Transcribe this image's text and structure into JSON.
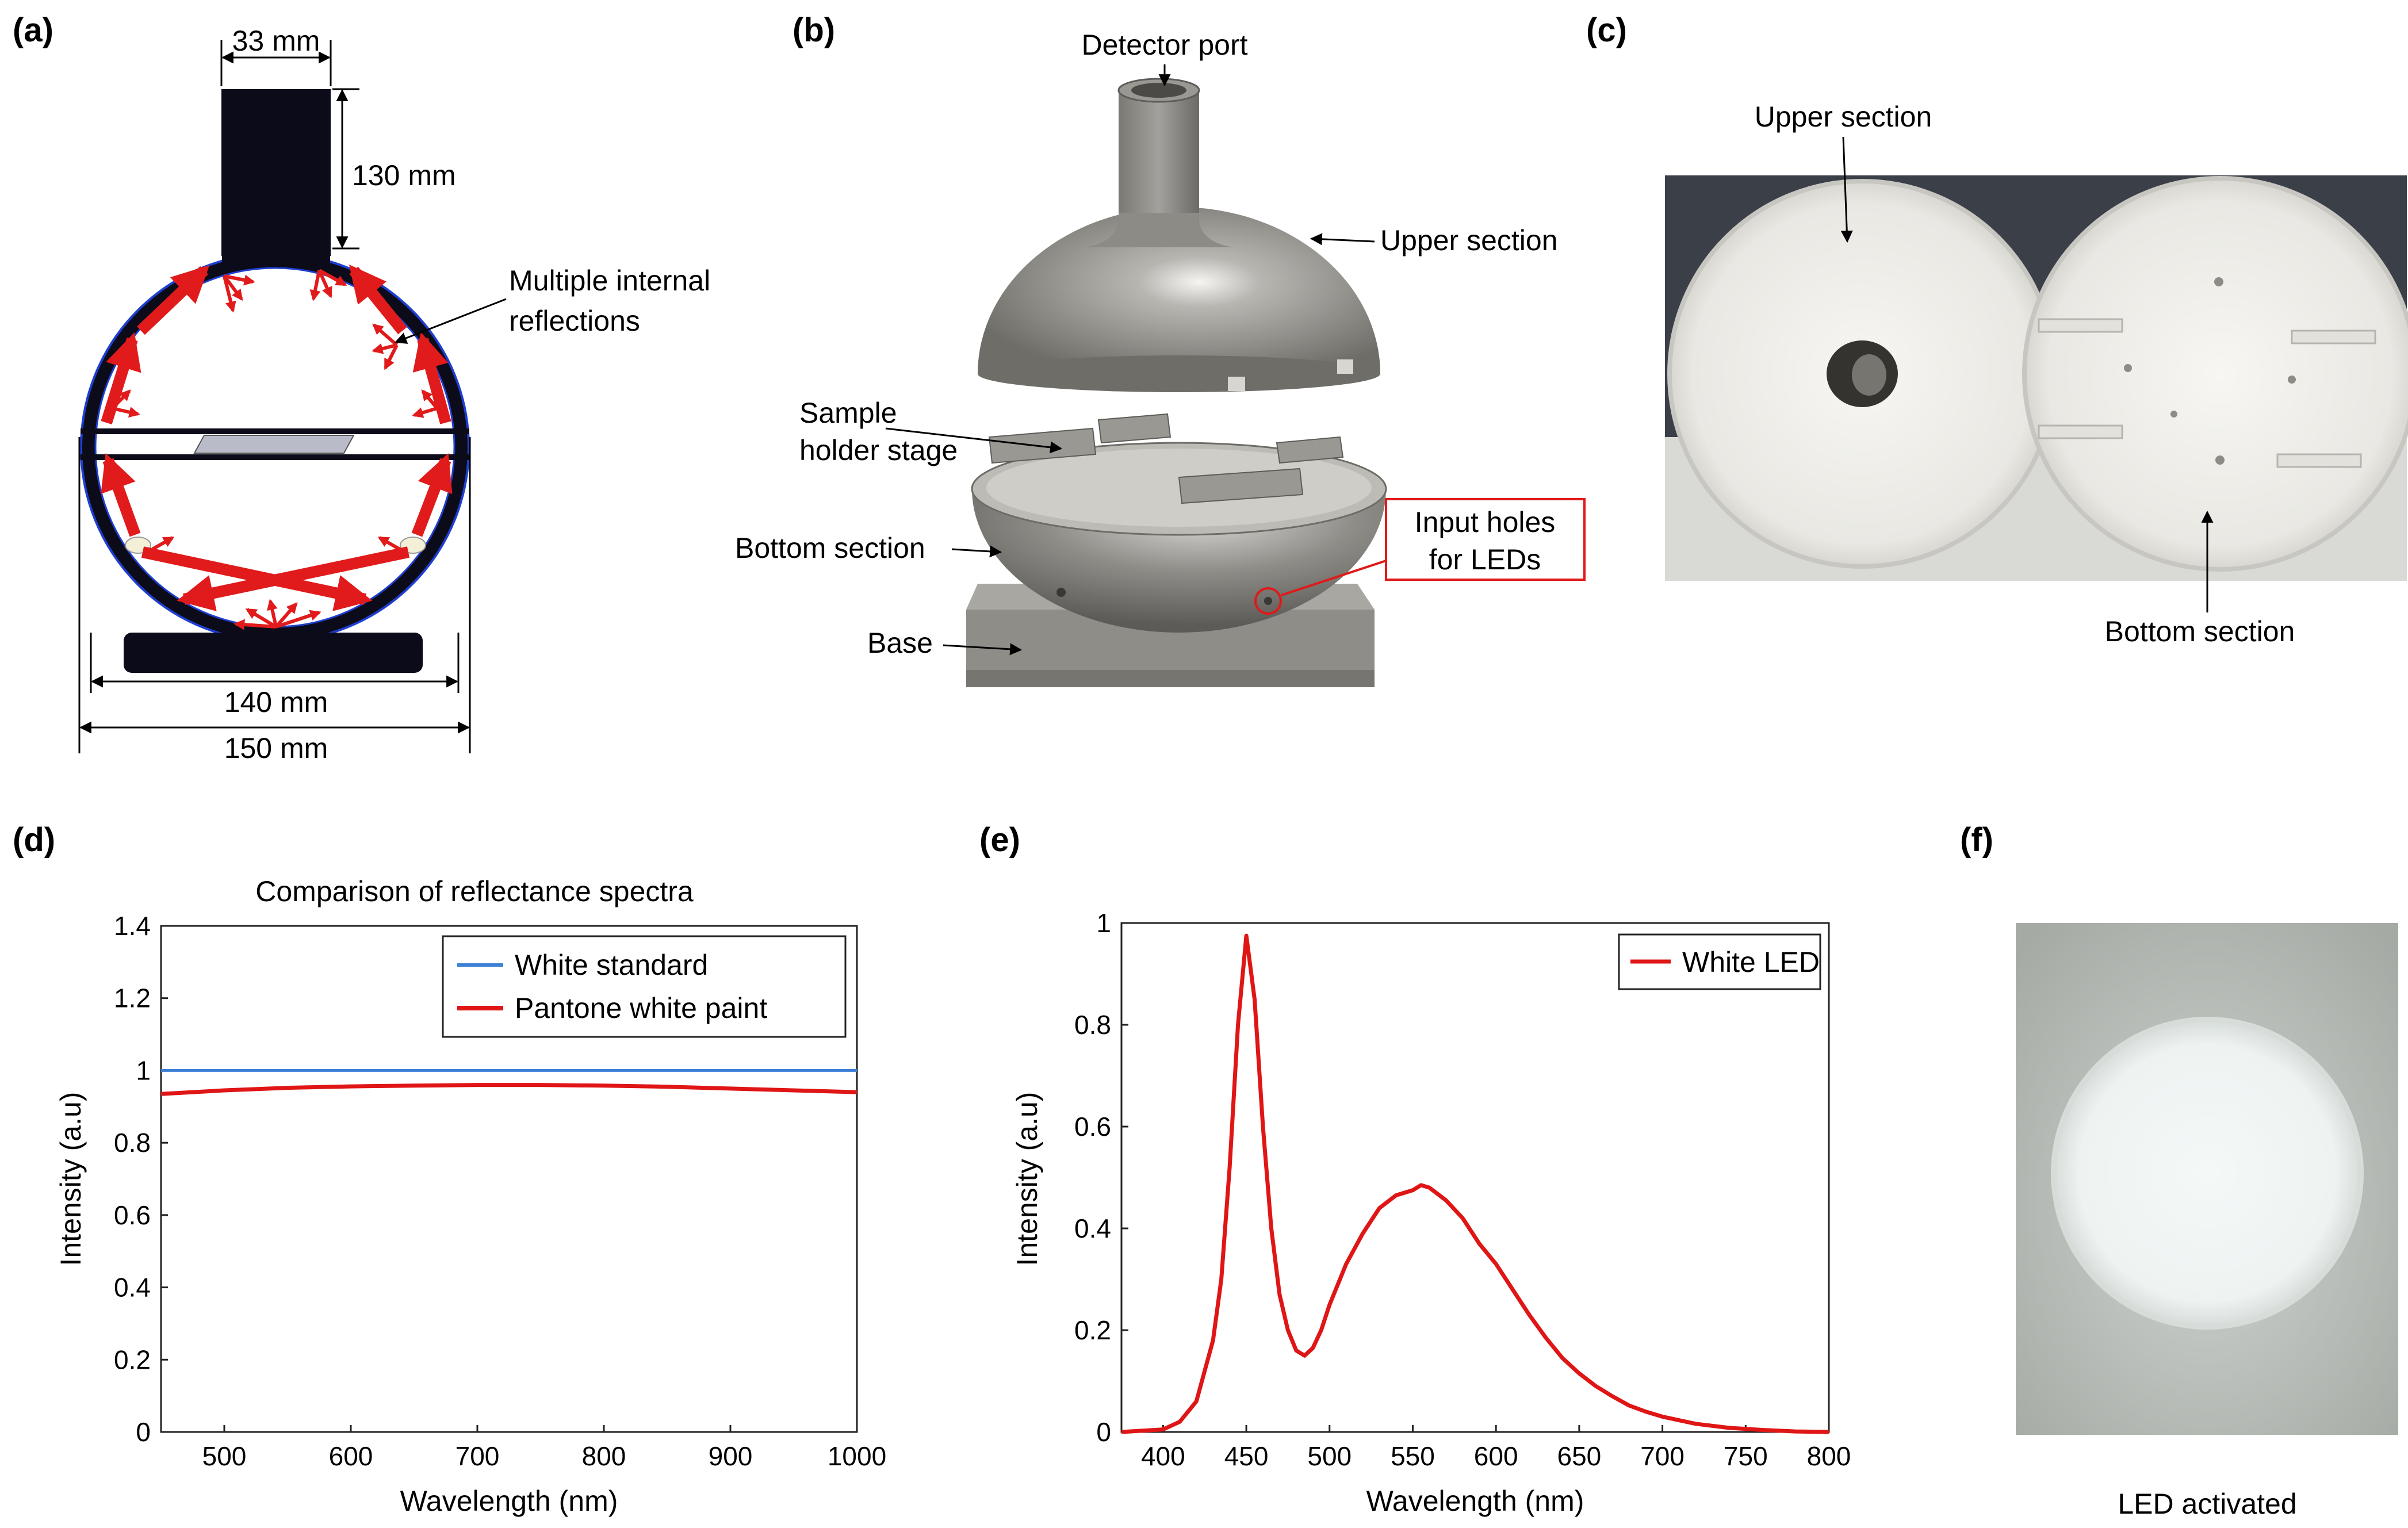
{
  "panels": {
    "a": "(a)",
    "b": "(b)",
    "c": "(c)",
    "d": "(d)",
    "e": "(e)",
    "f": "(f)"
  },
  "panel_a": {
    "dim_width_top": "33 mm",
    "dim_height": "130 mm",
    "dim_inner": "140 mm",
    "dim_outer": "150 mm",
    "annotation": [
      "Multiple internal",
      "reflections"
    ],
    "colors": {
      "sphere": "#0b0b1a",
      "rim": "#1f3fd1",
      "ray": "#e11b1b",
      "stage": "#b9bcc8"
    }
  },
  "panel_b": {
    "detector_port": "Detector port",
    "upper_section": "Upper section",
    "sample_holder": [
      "Sample",
      "holder stage"
    ],
    "bottom_section": "Bottom section",
    "base": "Base",
    "input_holes": [
      "Input holes",
      "for LEDs"
    ],
    "colors": {
      "metal": "#8a8883",
      "highlight": "#f2f1ee",
      "callout": "#e01919"
    }
  },
  "panel_c": {
    "upper_section": "Upper section",
    "bottom_section": "Bottom section",
    "colors": {
      "backdrop": "#3a3f48",
      "shell": "#ecebe6",
      "table": "#d9d9d6"
    }
  },
  "panel_f": {
    "caption": "LED activated",
    "colors": {
      "glow": "#f2f6f5",
      "surround": "#b9bdb8"
    }
  },
  "chart_data": [
    {
      "id": "d",
      "type": "line",
      "title": "Comparison of reflectance spectra",
      "xlabel": "Wavelength (nm)",
      "ylabel": "Intensity (a.u)",
      "xlim": [
        450,
        1000
      ],
      "ylim": [
        0,
        1.4
      ],
      "xticks": [
        500,
        600,
        700,
        800,
        900,
        1000
      ],
      "yticks": [
        0,
        0.2,
        0.4,
        0.6,
        0.8,
        1,
        1.2,
        1.4
      ],
      "ytick_labels": [
        "0",
        "0.2",
        "0.4",
        "0.6",
        "0.8",
        "1",
        "1.2",
        "1.4"
      ],
      "legend_position": "top-right",
      "series": [
        {
          "name": "White standard",
          "color": "#3d7fd6",
          "x": [
            450,
            1000
          ],
          "y": [
            1.0,
            1.0
          ]
        },
        {
          "name": "Pantone white paint",
          "color": "#e01515",
          "x": [
            450,
            500,
            550,
            600,
            650,
            700,
            750,
            800,
            850,
            900,
            950,
            1000
          ],
          "y": [
            0.935,
            0.945,
            0.952,
            0.956,
            0.958,
            0.96,
            0.96,
            0.958,
            0.955,
            0.95,
            0.945,
            0.94
          ]
        }
      ]
    },
    {
      "id": "e",
      "type": "line",
      "title": "",
      "xlabel": "Wavelength (nm)",
      "ylabel": "Intensity (a.u)",
      "xlim": [
        375,
        800
      ],
      "ylim": [
        0,
        1
      ],
      "xticks": [
        400,
        450,
        500,
        550,
        600,
        650,
        700,
        750,
        800
      ],
      "yticks": [
        0,
        0.2,
        0.4,
        0.6,
        0.8,
        1
      ],
      "ytick_labels": [
        "0",
        "0.2",
        "0.4",
        "0.6",
        "0.8",
        "1"
      ],
      "legend_position": "top-right",
      "series": [
        {
          "name": "White LED",
          "color": "#e01515",
          "x": [
            375,
            400,
            410,
            420,
            430,
            435,
            440,
            445,
            450,
            455,
            460,
            465,
            470,
            475,
            480,
            485,
            490,
            495,
            500,
            510,
            520,
            530,
            540,
            550,
            555,
            560,
            570,
            580,
            590,
            600,
            610,
            620,
            630,
            640,
            650,
            660,
            670,
            680,
            690,
            700,
            720,
            740,
            760,
            780,
            800
          ],
          "y": [
            0.0,
            0.005,
            0.02,
            0.06,
            0.18,
            0.3,
            0.52,
            0.8,
            0.975,
            0.85,
            0.6,
            0.4,
            0.27,
            0.2,
            0.16,
            0.15,
            0.165,
            0.2,
            0.25,
            0.33,
            0.39,
            0.44,
            0.465,
            0.475,
            0.485,
            0.48,
            0.455,
            0.42,
            0.37,
            0.33,
            0.28,
            0.23,
            0.185,
            0.145,
            0.115,
            0.09,
            0.07,
            0.052,
            0.04,
            0.03,
            0.016,
            0.008,
            0.004,
            0.001,
            0.0
          ]
        }
      ]
    }
  ]
}
